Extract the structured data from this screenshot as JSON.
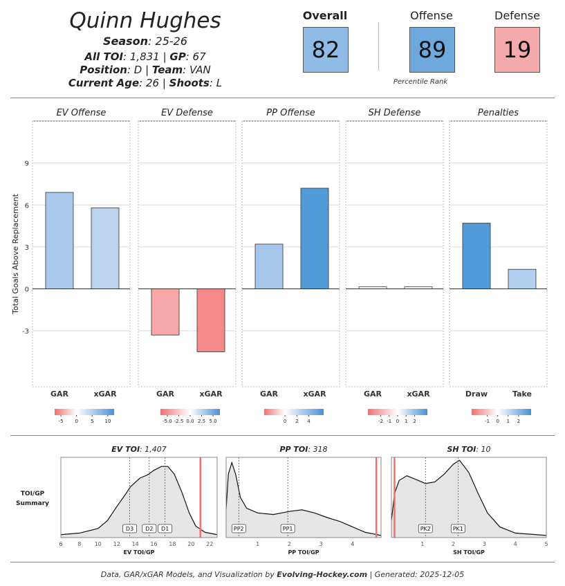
{
  "header": {
    "player_name": "Quinn Hughes",
    "season_label": "Season",
    "season_value": ": 25-26",
    "toi_label": "All TOI",
    "toi_value": ": 1,831 | ",
    "gp_label": "GP",
    "gp_value": ": 67",
    "position_label": "Position",
    "position_value": ": D | ",
    "team_label": "Team",
    "team_value": ": VAN",
    "age_label": "Current Age",
    "age_value": ": 26 | ",
    "shoots_label": "Shoots",
    "shoots_value": ": L"
  },
  "ratings": {
    "overall_title": "Overall",
    "overall_value": "82",
    "offense_title": "Offense",
    "offense_value": "89",
    "defense_title": "Defense",
    "defense_value": "19",
    "percentile_caption": "Percentile Rank",
    "colors": {
      "overall": "#8fbce6",
      "offense": "#6fa8dc",
      "defense": "#f4aaaa"
    }
  },
  "chart_data": [
    {
      "type": "bar",
      "ylabel": "Total Goals Above Replacement",
      "ylim": [
        -7,
        12
      ],
      "yticks": [
        -3,
        0,
        3,
        6,
        9
      ],
      "grid": true,
      "panels": [
        {
          "title": "EV Offense",
          "categories": [
            "GAR",
            "xGAR"
          ],
          "values": [
            6.9,
            5.8
          ],
          "colors": [
            "#a9c8eb",
            "#bcd3ee"
          ],
          "legend_ticks": [
            "-5",
            "0",
            "5",
            "10"
          ],
          "legend_range": [
            -7,
            12
          ]
        },
        {
          "title": "EV Defense",
          "categories": [
            "GAR",
            "xGAR"
          ],
          "values": [
            -3.3,
            -4.5
          ],
          "colors": [
            "#f6a7a7",
            "#f48a8a"
          ],
          "legend_ticks": [
            "-5.0",
            "-2.5",
            "0.0",
            "2.5",
            "5.0"
          ],
          "legend_range": [
            -6.5,
            6.5
          ]
        },
        {
          "title": "PP Offense",
          "categories": [
            "GAR",
            "xGAR"
          ],
          "values": [
            3.2,
            7.2
          ],
          "colors": [
            "#a6c6ea",
            "#519bd9"
          ],
          "legend_ticks": [
            "0",
            "2",
            "4"
          ],
          "legend_range": [
            -3.5,
            6.5
          ]
        },
        {
          "title": "SH Defense",
          "categories": [
            "GAR",
            "xGAR"
          ],
          "values": [
            0.15,
            0.15
          ],
          "colors": [
            "#ffffff",
            "#ffffff"
          ],
          "legend_ticks": [
            "-2",
            "-1",
            "0",
            "1",
            "2"
          ],
          "legend_range": [
            -3.5,
            3.5
          ]
        },
        {
          "title": "Penalties",
          "categories": [
            "Draw",
            "Take"
          ],
          "values": [
            4.7,
            1.4
          ],
          "colors": [
            "#519bd9",
            "#b3cff0"
          ],
          "legend_ticks": [
            "-1",
            "0",
            "1",
            "2"
          ],
          "legend_range": [
            -2.5,
            3.2
          ]
        }
      ]
    },
    {
      "type": "area",
      "row_label": [
        "TOI/GP",
        "Summary"
      ],
      "panels": [
        {
          "title_bold": "EV TOI",
          "title_value": ": 1,407",
          "xlabel": "EV TOI/GP",
          "xlim": [
            6,
            22.8
          ],
          "xticks": [
            6,
            8,
            10,
            12,
            14,
            16,
            18,
            20,
            22
          ],
          "player_value": 21.0,
          "markers": [
            {
              "label": "D3",
              "x": 13.4
            },
            {
              "label": "D2",
              "x": 15.5
            },
            {
              "label": "D1",
              "x": 17.2
            }
          ],
          "density": [
            [
              6,
              0.02
            ],
            [
              8,
              0.04
            ],
            [
              10,
              0.1
            ],
            [
              11,
              0.2
            ],
            [
              12,
              0.38
            ],
            [
              13,
              0.55
            ],
            [
              13.5,
              0.64
            ],
            [
              14.5,
              0.75
            ],
            [
              15.3,
              0.79
            ],
            [
              16,
              0.85
            ],
            [
              16.8,
              0.9
            ],
            [
              17.5,
              0.9
            ],
            [
              18.2,
              0.8
            ],
            [
              19,
              0.57
            ],
            [
              19.8,
              0.3
            ],
            [
              20.5,
              0.13
            ],
            [
              21.5,
              0.05
            ],
            [
              22.8,
              0.02
            ]
          ]
        },
        {
          "title_bold": "PP TOI",
          "title_value": ": 318",
          "xlabel": "PP TOI/GP",
          "xlim": [
            0,
            4.9
          ],
          "xticks": [
            1,
            2,
            3,
            4
          ],
          "player_value": 4.75,
          "markers": [
            {
              "label": "PP2",
              "x": 0.4
            },
            {
              "label": "PP1",
              "x": 1.95
            }
          ],
          "density": [
            [
              0,
              0.35
            ],
            [
              0.07,
              0.8
            ],
            [
              0.18,
              0.95
            ],
            [
              0.3,
              0.8
            ],
            [
              0.45,
              0.5
            ],
            [
              0.65,
              0.36
            ],
            [
              1.0,
              0.3
            ],
            [
              1.5,
              0.28
            ],
            [
              2.0,
              0.32
            ],
            [
              2.4,
              0.34
            ],
            [
              2.8,
              0.3
            ],
            [
              3.2,
              0.24
            ],
            [
              3.6,
              0.19
            ],
            [
              4.0,
              0.12
            ],
            [
              4.4,
              0.05
            ],
            [
              4.9,
              0.01
            ]
          ]
        },
        {
          "title_bold": "SH TOI",
          "title_value": ": 10",
          "xlabel": "SH TOI/GP",
          "xlim": [
            0,
            5
          ],
          "xticks": [
            1,
            2,
            3,
            4,
            5
          ],
          "player_value": 0.1,
          "markers": [
            {
              "label": "PK2",
              "x": 1.1
            },
            {
              "label": "PK1",
              "x": 2.15
            }
          ],
          "density": [
            [
              0,
              0.2
            ],
            [
              0.1,
              0.55
            ],
            [
              0.25,
              0.72
            ],
            [
              0.5,
              0.78
            ],
            [
              0.8,
              0.73
            ],
            [
              1.1,
              0.68
            ],
            [
              1.4,
              0.7
            ],
            [
              1.7,
              0.8
            ],
            [
              2.0,
              0.93
            ],
            [
              2.2,
              0.98
            ],
            [
              2.5,
              0.82
            ],
            [
              2.8,
              0.55
            ],
            [
              3.1,
              0.3
            ],
            [
              3.5,
              0.12
            ],
            [
              4.0,
              0.04
            ],
            [
              5.0,
              0.01
            ]
          ]
        }
      ]
    }
  ],
  "footer": {
    "prefix": "Data, GAR/xGAR Models, and Visualization by ",
    "brand": "Evolving-Hockey.com",
    "suffix": " | Generated: 2025-12-05"
  }
}
